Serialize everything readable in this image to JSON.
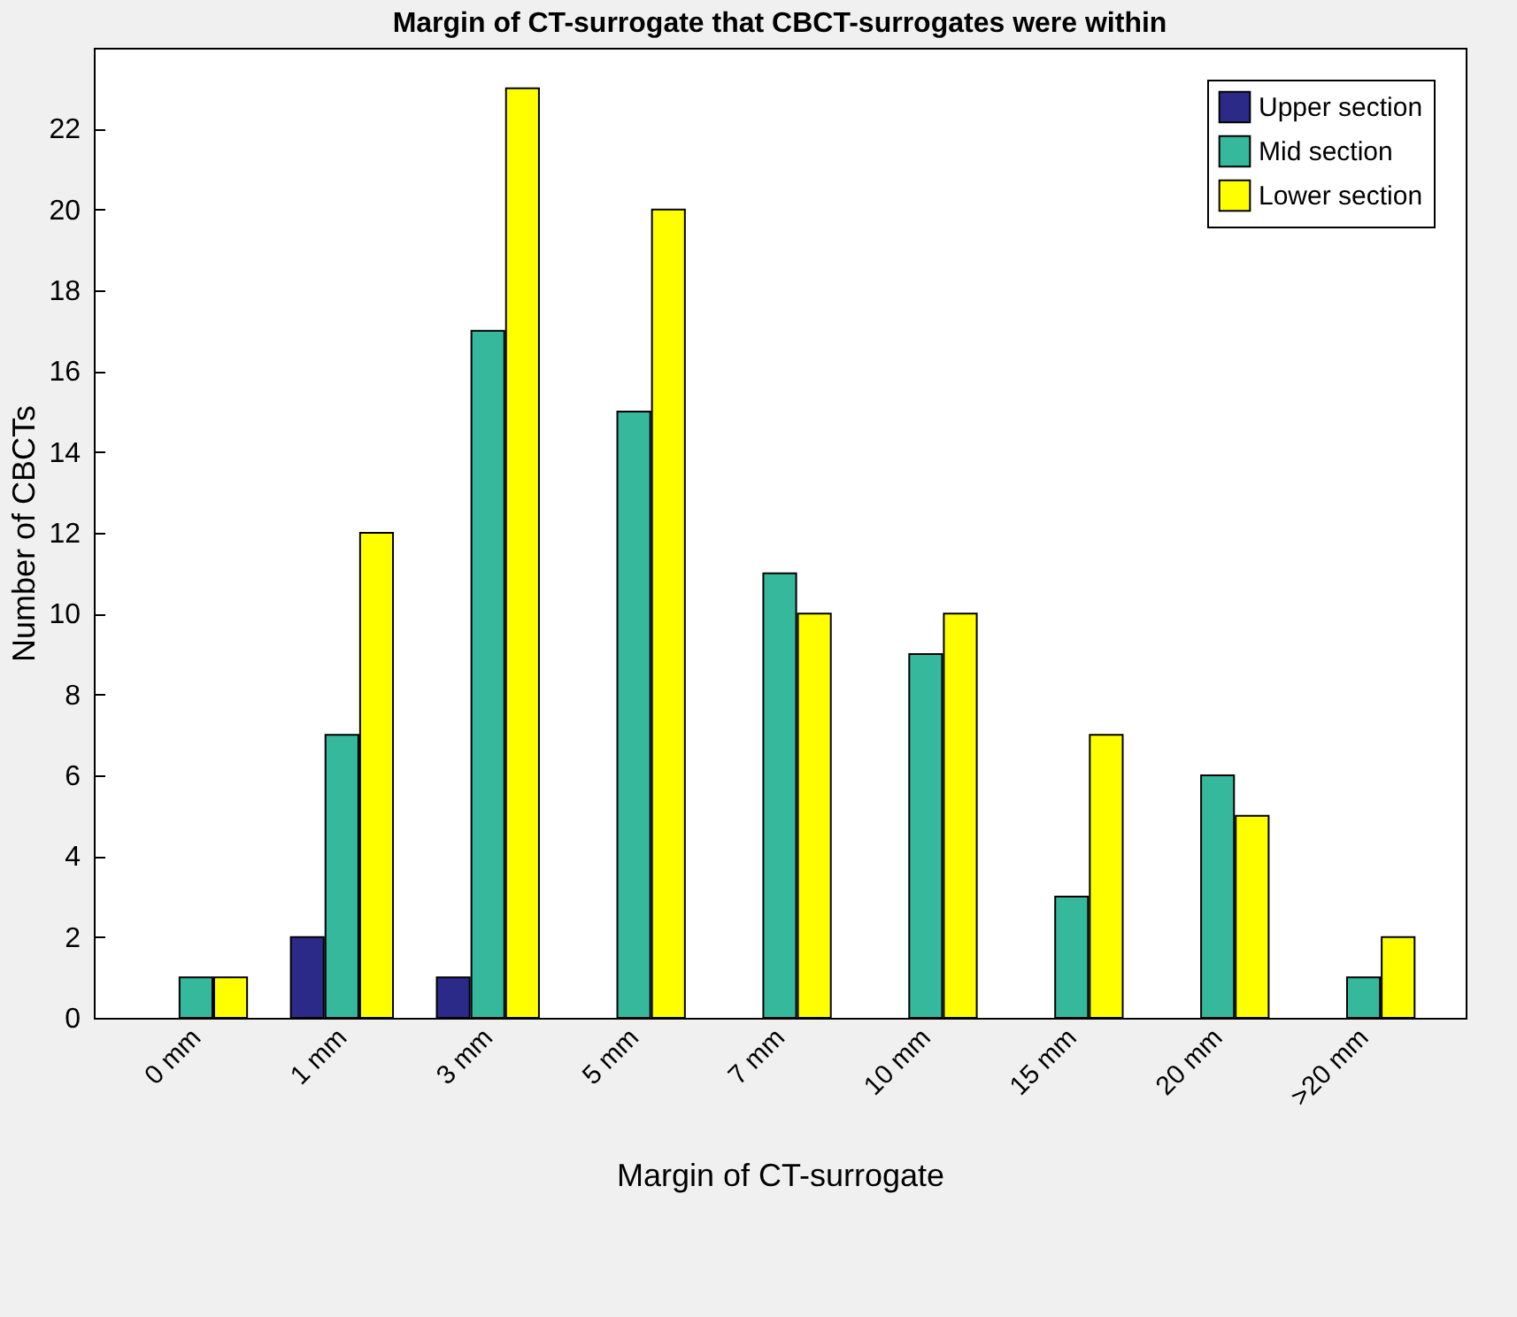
{
  "chart_data": {
    "type": "bar",
    "title": "Margin of CT-surrogate that CBCT-surrogates were within",
    "xlabel": "Margin of CT-surrogate",
    "ylabel": "Number of CBCTs",
    "categories": [
      "0 mm",
      "1 mm",
      "3 mm",
      "5 mm",
      "7 mm",
      "10 mm",
      "15 mm",
      "20 mm",
      ">20 mm"
    ],
    "series": [
      {
        "name": "Upper section",
        "color": "#2c2a88",
        "values": [
          0,
          2,
          1,
          0,
          0,
          0,
          0,
          0,
          0
        ]
      },
      {
        "name": "Mid section",
        "color": "#35b89c",
        "values": [
          1,
          7,
          17,
          15,
          11,
          9,
          3,
          6,
          1
        ]
      },
      {
        "name": "Lower section",
        "color": "#ffff00",
        "values": [
          1,
          12,
          23,
          20,
          10,
          10,
          7,
          5,
          2
        ]
      }
    ],
    "ylim": [
      0,
      24
    ],
    "yticks": [
      0,
      2,
      4,
      6,
      8,
      10,
      12,
      14,
      16,
      18,
      20,
      22
    ],
    "grid": false,
    "legend": "top right"
  }
}
